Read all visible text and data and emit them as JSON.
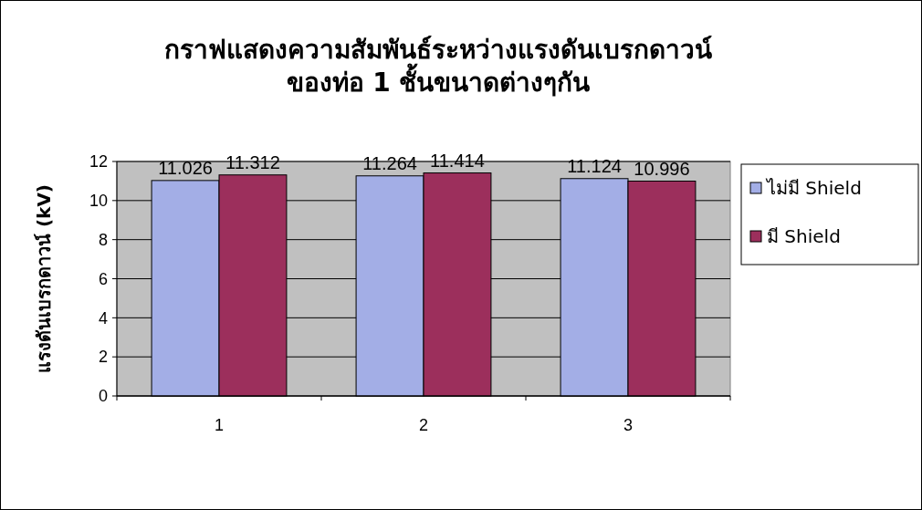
{
  "chart_data": {
    "type": "bar",
    "title": "กราฟแสดงความสัมพันธ์ระหว่างแรงดันเบรกดาวน์\nของท่อ 1 ชั้นขนาดต่างๆกัน",
    "ylabel": "แรงดันเบรกดาวน์ (kV)",
    "categories": [
      "1",
      "2",
      "3"
    ],
    "series": [
      {
        "name": "ไม่มี Shield",
        "color": "#a3aee6",
        "values": [
          11.026,
          11.264,
          11.124
        ]
      },
      {
        "name": "มี Shield",
        "color": "#9c2f5c",
        "values": [
          11.312,
          11.414,
          10.996
        ]
      }
    ],
    "ylim": [
      0,
      12
    ],
    "yticks": [
      0,
      2,
      4,
      6,
      8,
      10,
      12
    ],
    "grid": "y",
    "legend": "right",
    "data_labels": true
  }
}
